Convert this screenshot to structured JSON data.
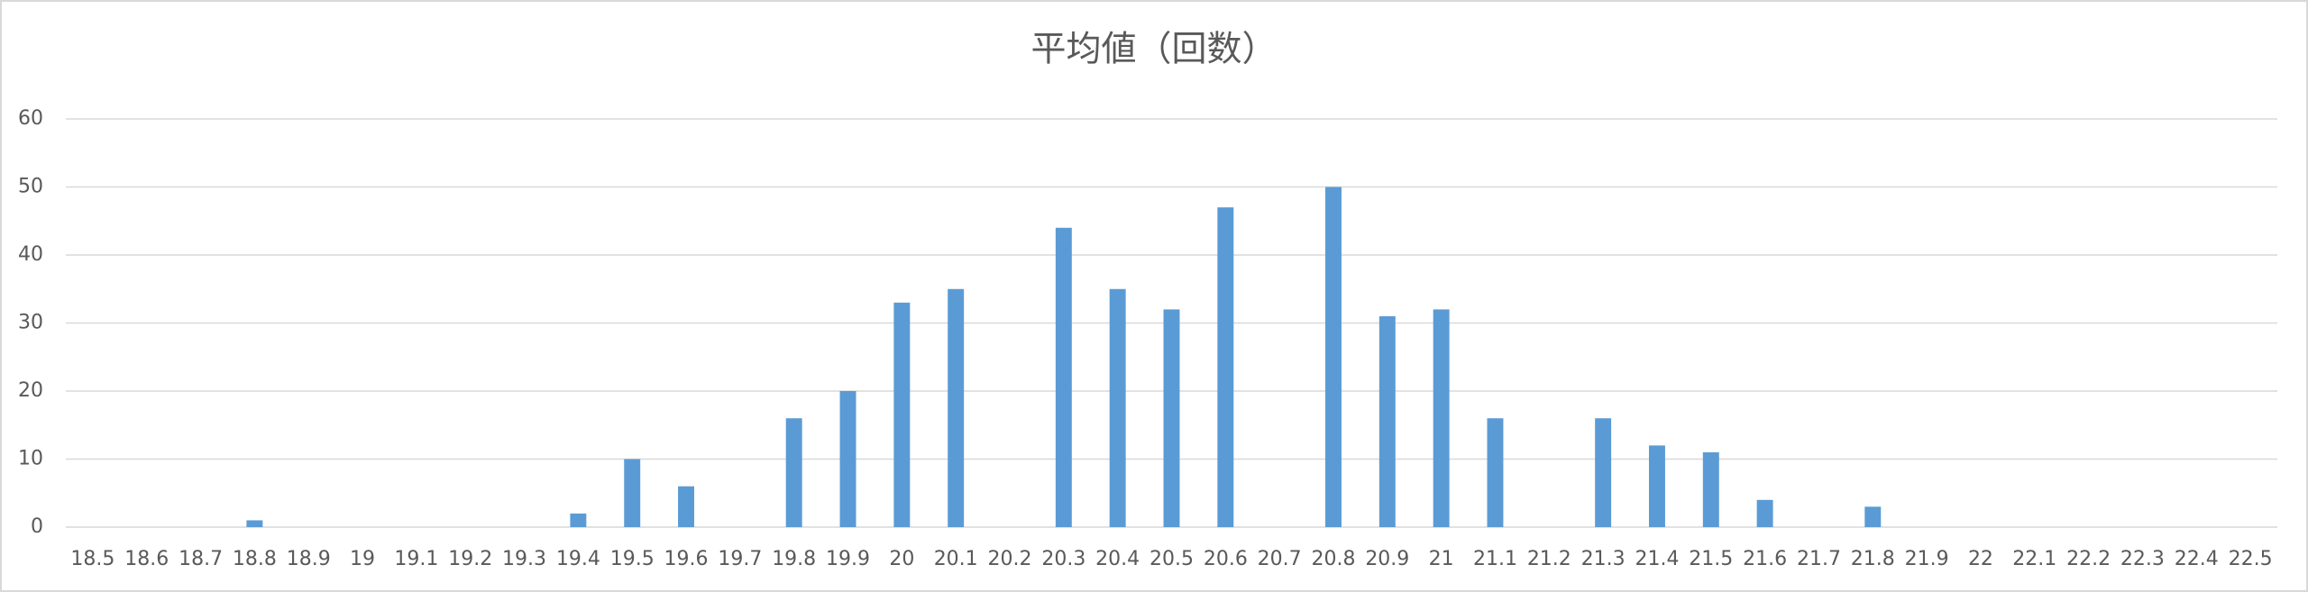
{
  "chart_data": {
    "type": "bar",
    "title": "平均値（回数）",
    "categories": [
      "18.5",
      "18.6",
      "18.7",
      "18.8",
      "18.9",
      "19",
      "19.1",
      "19.2",
      "19.3",
      "19.4",
      "19.5",
      "19.6",
      "19.7",
      "19.8",
      "19.9",
      "20",
      "20.1",
      "20.2",
      "20.3",
      "20.4",
      "20.5",
      "20.6",
      "20.7",
      "20.8",
      "20.9",
      "21",
      "21.1",
      "21.2",
      "21.3",
      "21.4",
      "21.5",
      "21.6",
      "21.7",
      "21.8",
      "21.9",
      "22",
      "22.1",
      "22.2",
      "22.3",
      "22.4",
      "22.5"
    ],
    "values": [
      0,
      0,
      0,
      1,
      0,
      0,
      0,
      0,
      0,
      2,
      10,
      6,
      0,
      16,
      20,
      33,
      35,
      0,
      44,
      35,
      32,
      47,
      0,
      50,
      31,
      32,
      16,
      0,
      16,
      12,
      11,
      4,
      0,
      3,
      0,
      0,
      0,
      0,
      0,
      0,
      0
    ],
    "color": "#5b9bd5",
    "ylim": [
      0,
      60
    ],
    "yticks": [
      0,
      10,
      20,
      30,
      40,
      50,
      60
    ],
    "grid": true
  }
}
